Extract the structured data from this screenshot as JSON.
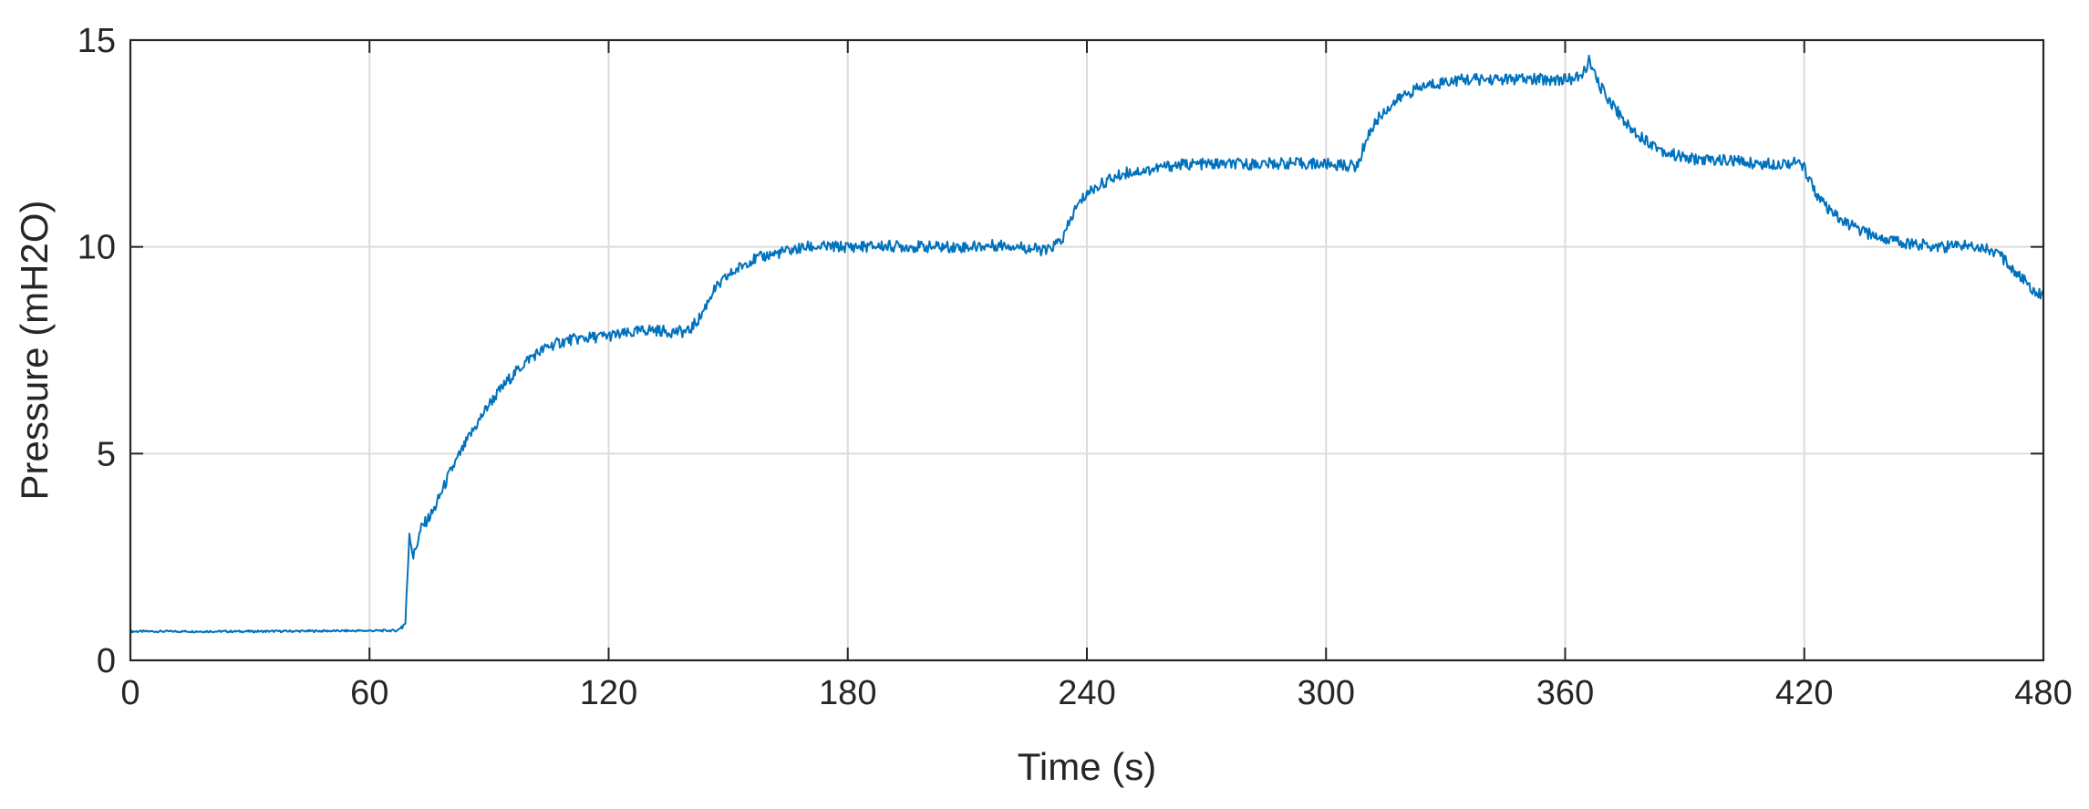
{
  "chart_data": {
    "type": "line",
    "title": "",
    "xlabel": "Time (s)",
    "ylabel": "Pressure (mH2O)",
    "xlim": [
      0,
      480
    ],
    "ylim": [
      0,
      15
    ],
    "xticks": [
      0,
      60,
      120,
      180,
      240,
      300,
      360,
      420,
      480
    ],
    "yticks": [
      0,
      5,
      10,
      15
    ],
    "grid": true,
    "line_color": "#0072BD",
    "series": [
      {
        "x": [
          0,
          30,
          67,
          69,
          70,
          71,
          73,
          76,
          80,
          85,
          90,
          95,
          100,
          105,
          110,
          115,
          120,
          125,
          130,
          135,
          140,
          143,
          146,
          150,
          155,
          160,
          165,
          170,
          175,
          180,
          190,
          200,
          210,
          220,
          230,
          234,
          237,
          240,
          245,
          250,
          255,
          260,
          265,
          270,
          280,
          290,
          300,
          308,
          310,
          313,
          316,
          320,
          325,
          330,
          335,
          340,
          350,
          360,
          364,
          366,
          368,
          370,
          373,
          376,
          380,
          385,
          390,
          395,
          400,
          410,
          418,
          420,
          423,
          425,
          427,
          430,
          435,
          440,
          445,
          450,
          455,
          460,
          465,
          467,
          469,
          471,
          473,
          475,
          477,
          479,
          480
        ],
        "y": [
          0.7,
          0.7,
          0.72,
          0.9,
          3.1,
          2.5,
          3.2,
          3.6,
          4.5,
          5.4,
          6.2,
          6.8,
          7.3,
          7.6,
          7.75,
          7.8,
          7.85,
          7.9,
          8.0,
          7.95,
          7.95,
          8.3,
          8.9,
          9.3,
          9.65,
          9.8,
          9.9,
          10.0,
          10.0,
          10.0,
          10.02,
          10.0,
          10.0,
          10.05,
          9.9,
          10.2,
          10.9,
          11.3,
          11.6,
          11.8,
          11.85,
          11.95,
          12.0,
          12.0,
          12.0,
          12.02,
          12.0,
          11.95,
          12.6,
          13.1,
          13.4,
          13.7,
          13.9,
          14.0,
          14.05,
          14.05,
          14.05,
          14.05,
          14.1,
          14.5,
          14.0,
          13.7,
          13.3,
          12.9,
          12.6,
          12.3,
          12.15,
          12.1,
          12.1,
          12.0,
          12.05,
          11.9,
          11.3,
          11.0,
          10.8,
          10.6,
          10.35,
          10.2,
          10.1,
          10.05,
          10.0,
          10.05,
          10.0,
          9.9,
          9.8,
          9.6,
          9.4,
          9.2,
          9.0,
          8.9,
          8.85
        ]
      }
    ]
  }
}
